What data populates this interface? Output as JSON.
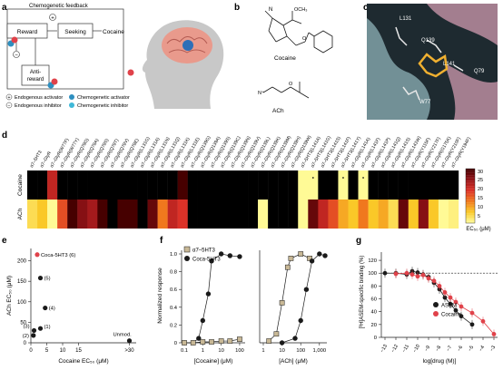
{
  "panels": {
    "a": {
      "letter": "a",
      "title": "Chemogenetic feedback",
      "reward": "Reward",
      "seeking": "Seeking",
      "cocaine": "Cocaine",
      "antireward_1": "Anti-",
      "antireward_2": "reward",
      "plus_sign": "+",
      "minus_sign": "−",
      "legend": [
        {
          "symbol": "+",
          "label": "Endogenous activator"
        },
        {
          "symbol": "−",
          "label": "Endogenous inhibitor"
        },
        {
          "symbol": "dot-blue",
          "label": "Chemogenetic activator"
        },
        {
          "symbol": "dot-cyan",
          "label": "Chemogenetic inhibitor"
        }
      ],
      "colors": {
        "ball_red": "#e0424a",
        "ball_blue": "#2e8fc0",
        "brain": "#e99a8c",
        "head": "#c8c8c8"
      }
    },
    "b": {
      "letter": "b",
      "cocaine_label": "Cocaine",
      "ach_label": "ACh",
      "och3": "OCH₃",
      "n_label": "N",
      "o_label": "O",
      "nplus": "N⁺"
    },
    "c": {
      "letter": "c",
      "residues": [
        "L131",
        "Q139",
        "L141",
        "Q79",
        "W77"
      ]
    },
    "d": {
      "letter": "d",
      "row_labels": [
        "Cocaine",
        "ACh"
      ],
      "colorbar_title": "EC₅₀ (μM)",
      "colorbar_ticks": [
        "30",
        "25",
        "20",
        "15",
        "10",
        "5"
      ],
      "columns": [
        "α7–5HT3",
        "α7–GlyR",
        "α7–GlyR(W77F)",
        "α7–GlyR(W77Y)",
        "α7–GlyR(Q79G)",
        "α7–GlyR(Q79A)",
        "α7–GlyR(Q79S)",
        "α7–GlyR(Q79T)",
        "α7–GlyR(Q79V)",
        "α7–GlyR(Q79E)",
        "α7–GlyR(L131G)",
        "α7–GlyR(L131A)",
        "α7–GlyR(L131N)",
        "α7–GlyR(L131Q)",
        "α7–GlyR(L131K)",
        "α7–GlyR(L131E)",
        "α7–GlyR(Q139G)",
        "α7–GlyR(Q139A)",
        "α7–GlyR(Q139S)",
        "α7–GlyR(Q139C)",
        "α7–GlyR(Q139N)",
        "α7–GlyR(Q139V)",
        "α7–GlyR(Q139L)",
        "α7–GlyR(Q139K)",
        "α7–GlyR(Q139M)",
        "α7–GlyR(Q139H)",
        "α7–GlyR(Q139W)",
        "α7–5HT3(L141A)",
        "α7–5HT3(L141G)",
        "α7–5HT3(L141S)",
        "α7–5HT3(L141F)",
        "α7–5HT3(L141Y)",
        "α7–GlyR(L141A)",
        "α7–GlyR(L141F)",
        "α7–GlyR(L141P)",
        "α7–GlyR(L141Q)",
        "α7–GlyR(L141S)",
        "α7–GlyR(L141W)",
        "α7–GlyR(Y115F)",
        "α7–GlyR(Y217F)",
        "α7–GlyR(G175K)",
        "α7–GlyR(Y210F)",
        "α7–GlyR(Y194F)"
      ],
      "cocaine_row": [
        ">30",
        ">30",
        22,
        ">30",
        ">30",
        ">30",
        ">30",
        ">30",
        ">30",
        ">30",
        ">30",
        ">30",
        ">30",
        ">30",
        ">30",
        30,
        ">30",
        ">30",
        ">30",
        ">30",
        ">30",
        ">30",
        ">30",
        ">30",
        ">30",
        ">30",
        ">30",
        3,
        2,
        ">30",
        ">30",
        5,
        ">30",
        4,
        ">30",
        ">30",
        ">30",
        ">30",
        ">30",
        ">30",
        ">30",
        ">30",
        ">30"
      ],
      "ach_row": [
        8,
        10,
        4,
        18,
        30,
        26,
        24,
        30,
        ">30",
        30,
        30,
        ">30",
        28,
        15,
        22,
        20,
        ">30",
        ">30",
        ">30",
        ">30",
        ">30",
        ">30",
        ">30",
        3,
        ">30",
        ">30",
        ">30",
        5,
        28,
        22,
        18,
        12,
        10,
        15,
        10,
        12,
        8,
        28,
        10,
        26,
        10,
        3,
        6
      ],
      "marked": [
        {
          "row": 0,
          "col": 28
        },
        {
          "row": 0,
          "col": 31
        },
        {
          "row": 0,
          "col": 33
        }
      ]
    },
    "e": {
      "letter": "e",
      "xlabel": "Cocaine EC₅₀ (μM)",
      "ylabel": "ACh EC₅₀ (μM)",
      "x_ticks": [
        "0",
        "5",
        "10",
        "15",
        ">30"
      ],
      "y_ticks": [
        "0",
        "50",
        "100",
        "150",
        "200"
      ],
      "points_labels": [
        "Coca-5HT3 (6)",
        "(5)",
        "(4)",
        "(3)",
        "(2)",
        "(1)",
        "Unmod."
      ]
    },
    "f": {
      "letter": "f",
      "ylabel": "Normalized response",
      "xlabel_left": "[Cocaine] (μM)",
      "xlabel_right": "[ACh] (μM)",
      "legend": [
        "α7–5HT3",
        "Coca-5HT3"
      ],
      "y_ticks": [
        "0",
        "0.2",
        "0.4",
        "0.6",
        "0.8",
        "1.0"
      ],
      "x_ticks_left": [
        "0.1",
        "1",
        "10",
        "100"
      ],
      "x_ticks_right": [
        "1",
        "10",
        "100",
        "1,000"
      ]
    },
    "g": {
      "letter": "g",
      "ylabel": "[³H]ASEM-specific binding (%)",
      "xlabel": "log[drug (M)]",
      "legend": [
        "ASEM",
        "Cocaine"
      ],
      "y_ticks": [
        "0",
        "20",
        "40",
        "60",
        "80",
        "100",
        "120"
      ],
      "x_ticks": [
        "−13",
        "−12",
        "−11",
        "−10",
        "−9",
        "−8",
        "−7",
        "−6",
        "−5",
        "−4",
        "−3"
      ]
    }
  },
  "chart_data": [
    {
      "type": "heatmap",
      "title": "",
      "rows": [
        "Cocaine",
        "ACh"
      ],
      "colorbar": {
        "label": "EC₅₀ (μM)",
        "range": [
          5,
          30
        ]
      }
    },
    {
      "type": "scatter",
      "xlabel": "Cocaine EC₅₀ (μM)",
      "ylabel": "ACh EC₅₀ (μM)",
      "xlim": [
        0,
        32
      ],
      "ylim": [
        0,
        230
      ],
      "points": [
        {
          "label": "Coca-5HT3 (6)",
          "x": 2,
          "y": 215,
          "color": "#e0424a"
        },
        {
          "label": "(5)",
          "x": 3,
          "y": 158,
          "color": "#1a1a1a"
        },
        {
          "label": "(4)",
          "x": 4.5,
          "y": 85,
          "color": "#1a1a1a"
        },
        {
          "label": "(3)",
          "x": 1,
          "y": 30,
          "color": "#1a1a1a"
        },
        {
          "label": "(2)",
          "x": 0.8,
          "y": 18,
          "color": "#1a1a1a"
        },
        {
          "label": "(1)",
          "x": 3,
          "y": 35,
          "color": "#1a1a1a"
        },
        {
          "label": "Unmod.",
          "x": 31,
          "y": 5,
          "color": "#1a1a1a"
        }
      ]
    },
    {
      "type": "line",
      "name": "cocaine dose-response",
      "xlabel": "[Cocaine] (μM)",
      "ylabel": "Normalized response",
      "xscale": "log",
      "series": [
        {
          "name": "Coca-5HT3",
          "x": [
            0.1,
            0.3,
            0.6,
            1,
            2,
            3,
            10,
            30,
            100
          ],
          "y": [
            0.0,
            0.0,
            0.05,
            0.25,
            0.55,
            0.92,
            1.0,
            0.98,
            0.97
          ]
        },
        {
          "name": "α7–5HT3",
          "x": [
            0.1,
            0.3,
            1,
            3,
            10,
            30,
            100
          ],
          "y": [
            0.0,
            0.0,
            0.01,
            0.01,
            0.02,
            0.02,
            0.04
          ]
        }
      ]
    },
    {
      "type": "line",
      "name": "ACh dose-response",
      "xlabel": "[ACh] (μM)",
      "ylabel": "Normalized response",
      "xscale": "log",
      "series": [
        {
          "name": "α7–5HT3",
          "x": [
            2,
            5,
            10,
            20,
            30,
            100,
            300
          ],
          "y": [
            0.02,
            0.1,
            0.45,
            0.85,
            0.95,
            1.0,
            0.95
          ]
        },
        {
          "name": "Coca-5HT3",
          "x": [
            10,
            50,
            100,
            200,
            400,
            1000,
            2000
          ],
          "y": [
            0.0,
            0.05,
            0.25,
            0.6,
            0.92,
            1.0,
            0.98
          ]
        }
      ]
    },
    {
      "type": "line",
      "name": "ASEM binding",
      "xlabel": "log[drug (M)]",
      "ylabel": "[³H]ASEM-specific binding (%)",
      "ylim": [
        0,
        130
      ],
      "series": [
        {
          "name": "ASEM",
          "x": [
            -13,
            -12,
            -11,
            -10.5,
            -10,
            -9.5,
            -9,
            -8.5,
            -8,
            -7.5,
            -7,
            -6.5,
            -6,
            -5
          ],
          "y": [
            100,
            100,
            98,
            103,
            101,
            98,
            94,
            85,
            75,
            62,
            52,
            42,
            33,
            20
          ]
        },
        {
          "name": "Cocaine",
          "x": [
            -12,
            -11,
            -10.5,
            -10,
            -9.5,
            -9,
            -8.5,
            -8,
            -7.5,
            -7,
            -6.5,
            -6,
            -5,
            -4,
            -3
          ],
          "y": [
            99,
            100,
            98,
            95,
            97,
            92,
            88,
            80,
            70,
            62,
            55,
            48,
            38,
            25,
            5
          ]
        }
      ]
    }
  ]
}
